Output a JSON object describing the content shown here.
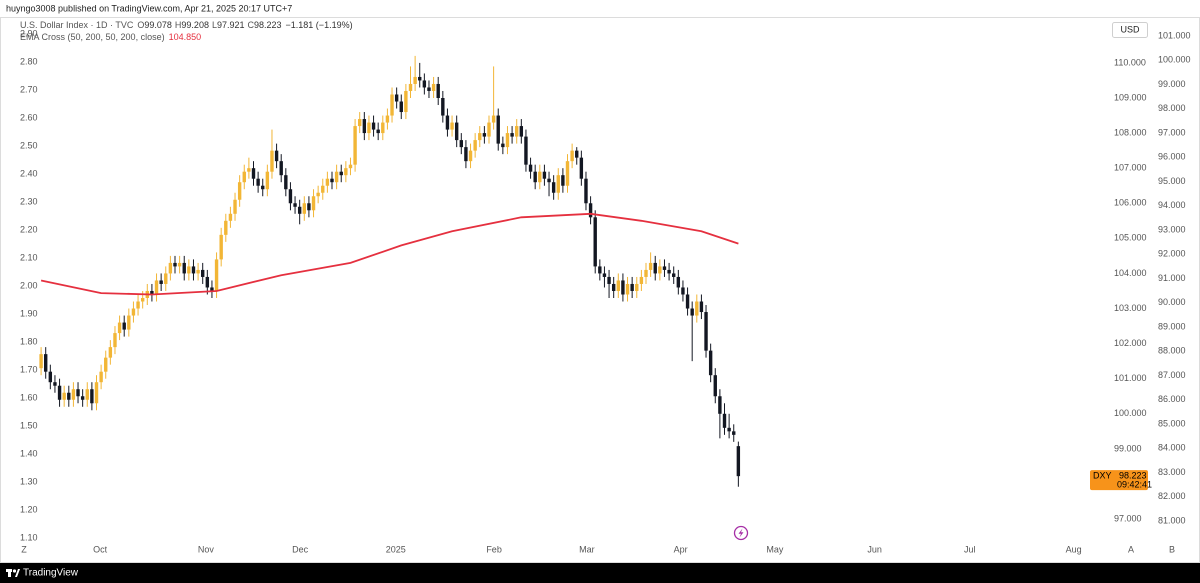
{
  "header": {
    "text": "huyngo3008 published on TradingView.com, Apr 21, 2025 20:17 UTC+7"
  },
  "chart_data": {
    "type": "candlestick",
    "title": "U.S. Dollar Index · 1D · TVC",
    "ohlc_labels": [
      "O",
      "H",
      "L",
      "C"
    ],
    "change": "−1.181 (−1.19%)",
    "currency": "USD",
    "up_color": "#f2b636",
    "down_color": "#131722",
    "open": [
      101.3,
      101.7,
      101.2,
      100.9,
      100.8,
      100.4,
      100.6,
      100.4,
      100.7,
      100.5,
      100.4,
      100.7,
      100.3,
      100.9,
      101.2,
      101.6,
      101.9,
      102.3,
      102.6,
      102.4,
      102.8,
      103.0,
      103.2,
      103.3,
      103.5,
      103.4,
      103.8,
      103.7,
      104.0,
      104.3,
      104.2,
      104.3,
      104.0,
      104.2,
      104.0,
      104.1,
      103.9,
      103.6,
      103.5,
      104.4,
      105.1,
      105.5,
      105.7,
      106.1,
      106.6,
      106.9,
      107.0,
      106.7,
      106.5,
      106.4,
      106.9,
      107.5,
      107.2,
      106.8,
      106.4,
      106.0,
      105.9,
      105.7,
      106.0,
      105.8,
      106.2,
      106.3,
      106.5,
      106.7,
      106.6,
      106.9,
      106.8,
      107.0,
      107.1,
      108.2,
      108.4,
      108.0,
      108.3,
      108.1,
      108.0,
      108.3,
      108.5,
      109.1,
      108.9,
      108.6,
      109.2,
      109.4,
      109.6,
      109.5,
      109.3,
      109.2,
      109.4,
      109.0,
      108.5,
      108.1,
      108.3,
      107.8,
      107.6,
      107.2,
      107.5,
      107.8,
      108.0,
      107.9,
      108.3,
      108.5,
      107.7,
      107.6,
      108.0,
      107.9,
      108.2,
      107.9,
      107.1,
      106.9,
      106.6,
      106.9,
      106.7,
      106.6,
      106.3,
      106.8,
      106.5,
      107.2,
      107.5,
      107.3,
      106.7,
      106.0,
      105.6,
      104.2,
      104.0,
      103.9,
      103.7,
      103.5,
      103.8,
      103.4,
      103.7,
      103.5,
      103.7,
      103.9,
      104.1,
      104.3,
      104.0,
      104.2,
      104.1,
      104.0,
      103.9,
      103.6,
      103.4,
      103.0,
      102.8,
      103.2,
      102.9,
      101.8,
      101.1,
      100.5,
      100.0,
      99.6,
      99.5,
      99.078
    ],
    "high": [
      101.9,
      101.9,
      101.4,
      101.1,
      101.0,
      100.8,
      100.8,
      100.9,
      100.9,
      100.7,
      100.9,
      100.9,
      101.1,
      101.4,
      101.8,
      102.1,
      102.5,
      102.8,
      102.8,
      103.0,
      103.2,
      103.4,
      103.5,
      103.7,
      103.7,
      104.0,
      104.0,
      104.2,
      104.5,
      104.5,
      104.5,
      104.5,
      104.4,
      104.4,
      104.3,
      104.3,
      104.1,
      103.8,
      104.6,
      105.3,
      105.7,
      105.9,
      106.3,
      106.8,
      107.1,
      107.3,
      107.2,
      106.9,
      106.7,
      107.1,
      108.1,
      107.7,
      107.4,
      107.0,
      106.6,
      106.2,
      106.1,
      106.2,
      106.2,
      106.4,
      106.5,
      106.7,
      106.9,
      106.9,
      107.1,
      107.1,
      107.2,
      107.3,
      108.4,
      108.6,
      108.6,
      108.5,
      108.5,
      108.3,
      108.5,
      108.7,
      109.3,
      109.3,
      109.1,
      109.4,
      109.9,
      110.2,
      110.0,
      109.7,
      109.5,
      109.6,
      109.6,
      109.2,
      108.7,
      108.5,
      108.5,
      108.0,
      107.8,
      107.7,
      108.0,
      108.2,
      108.2,
      108.5,
      109.9,
      108.7,
      107.9,
      108.2,
      108.2,
      108.4,
      108.4,
      108.1,
      107.3,
      107.1,
      107.1,
      107.1,
      106.9,
      106.8,
      107.0,
      107.0,
      107.4,
      107.7,
      107.6,
      107.5,
      106.9,
      106.2,
      105.8,
      104.4,
      104.2,
      104.1,
      103.9,
      104.0,
      104.0,
      103.9,
      103.9,
      103.9,
      104.1,
      104.3,
      104.6,
      104.5,
      104.4,
      104.4,
      104.3,
      104.2,
      104.1,
      103.8,
      103.6,
      103.2,
      103.4,
      103.4,
      103.1,
      102.0,
      101.3,
      100.7,
      100.3,
      100.0,
      99.7,
      99.208
    ],
    "low": [
      101.1,
      101.0,
      100.7,
      100.6,
      100.2,
      100.2,
      100.2,
      100.2,
      100.3,
      100.2,
      100.2,
      100.1,
      100.1,
      100.7,
      101.0,
      101.4,
      101.7,
      102.1,
      102.2,
      102.2,
      102.6,
      102.8,
      103.0,
      103.1,
      103.2,
      103.2,
      103.5,
      103.5,
      103.8,
      104.0,
      104.0,
      103.8,
      103.8,
      103.8,
      103.8,
      103.7,
      103.4,
      103.3,
      103.3,
      104.2,
      104.9,
      105.3,
      105.5,
      105.9,
      106.4,
      106.7,
      106.5,
      106.3,
      106.2,
      106.2,
      106.7,
      107.0,
      106.6,
      106.2,
      105.8,
      105.7,
      105.4,
      105.5,
      105.6,
      105.6,
      106.0,
      106.1,
      106.3,
      106.4,
      106.4,
      106.6,
      106.6,
      106.8,
      106.9,
      108.0,
      107.8,
      107.8,
      107.9,
      107.8,
      107.8,
      108.1,
      108.3,
      108.7,
      108.4,
      108.4,
      109.0,
      109.2,
      109.3,
      109.1,
      109.0,
      109.0,
      108.8,
      108.3,
      107.9,
      107.9,
      107.6,
      107.4,
      107.0,
      107.0,
      107.3,
      107.6,
      107.7,
      107.7,
      108.1,
      107.5,
      107.4,
      107.4,
      107.7,
      107.7,
      107.7,
      106.9,
      106.7,
      106.4,
      106.4,
      106.5,
      106.2,
      106.1,
      106.1,
      106.3,
      106.3,
      107.0,
      107.1,
      106.5,
      105.8,
      105.4,
      104.0,
      103.8,
      103.6,
      103.3,
      103.3,
      103.3,
      103.2,
      103.2,
      103.3,
      103.3,
      103.5,
      103.7,
      103.9,
      103.8,
      103.8,
      103.9,
      103.8,
      103.7,
      103.4,
      103.2,
      102.8,
      101.5,
      102.6,
      102.7,
      101.6,
      100.9,
      100.3,
      99.3,
      99.4,
      99.3,
      99.2,
      97.921
    ],
    "close": [
      101.7,
      101.2,
      100.9,
      100.8,
      100.4,
      100.6,
      100.4,
      100.7,
      100.5,
      100.4,
      100.7,
      100.3,
      100.9,
      101.2,
      101.6,
      101.9,
      102.3,
      102.6,
      102.4,
      102.8,
      103.0,
      103.2,
      103.3,
      103.5,
      103.4,
      103.8,
      103.7,
      104.0,
      104.3,
      104.2,
      104.3,
      104.0,
      104.2,
      104.0,
      104.1,
      103.9,
      103.6,
      103.5,
      104.4,
      105.1,
      105.5,
      105.7,
      106.1,
      106.6,
      106.9,
      107.0,
      106.7,
      106.5,
      106.4,
      106.9,
      107.5,
      107.2,
      106.8,
      106.4,
      106.0,
      105.9,
      105.7,
      106.0,
      105.8,
      106.2,
      106.3,
      106.5,
      106.7,
      106.6,
      106.9,
      106.8,
      107.0,
      107.1,
      108.2,
      108.4,
      108.0,
      108.3,
      108.1,
      108.0,
      108.3,
      108.5,
      109.1,
      108.9,
      108.6,
      109.2,
      109.4,
      109.6,
      109.5,
      109.3,
      109.2,
      109.4,
      109.0,
      108.5,
      108.1,
      108.3,
      107.8,
      107.6,
      107.2,
      107.5,
      107.8,
      108.0,
      107.9,
      108.3,
      108.5,
      107.7,
      107.6,
      108.0,
      107.9,
      108.2,
      107.9,
      107.1,
      106.9,
      106.6,
      106.9,
      106.7,
      106.6,
      106.3,
      106.8,
      106.5,
      107.2,
      107.5,
      107.3,
      106.7,
      106.0,
      105.6,
      104.2,
      104.0,
      103.9,
      103.7,
      103.5,
      103.8,
      103.4,
      103.7,
      103.5,
      103.7,
      103.9,
      104.1,
      104.3,
      104.0,
      104.2,
      104.1,
      104.0,
      103.9,
      103.6,
      103.4,
      103.0,
      102.8,
      103.2,
      102.9,
      101.8,
      101.1,
      100.5,
      100.0,
      99.6,
      99.5,
      99.4,
      98.223
    ],
    "ema": {
      "name": "EMA Cross (50, 200, 50, 200, close)",
      "color": "#e5303f",
      "x": [
        0,
        13,
        24,
        38,
        52,
        67,
        78,
        89,
        104,
        119,
        130,
        143,
        151
      ],
      "values": [
        103.8,
        103.44,
        103.4,
        103.5,
        103.95,
        104.3,
        104.8,
        105.2,
        105.6,
        105.7,
        105.5,
        105.2,
        104.85
      ],
      "value_labels": [
        null,
        null,
        null,
        null,
        null,
        null,
        null,
        null,
        null,
        null,
        null,
        null,
        "104.850"
      ]
    },
    "xlim": [
      -5,
      230.4
    ],
    "xticks": [
      {
        "value": 12.8,
        "label": "Oct"
      },
      {
        "value": 35.7,
        "label": "Nov"
      },
      {
        "value": 56.1,
        "label": "Dec"
      },
      {
        "value": 76.8,
        "label": "2025"
      },
      {
        "value": 98.1,
        "label": "Feb"
      },
      {
        "value": 118.2,
        "label": "Mar"
      },
      {
        "value": 138.5,
        "label": "Apr"
      },
      {
        "value": 158.9,
        "label": "May"
      },
      {
        "value": 180.5,
        "label": "Jun"
      },
      {
        "value": 201.1,
        "label": "Jul"
      },
      {
        "value": 223.6,
        "label": "Aug"
      }
    ],
    "ylim": [
      95.89,
      111.28
    ],
    "yticks": [
      {
        "value": 110,
        "label": "110.000"
      },
      {
        "value": 109,
        "label": "109.000"
      },
      {
        "value": 108,
        "label": "108.000"
      },
      {
        "value": 107,
        "label": "107.000"
      },
      {
        "value": 106,
        "label": "106.000"
      },
      {
        "value": 105,
        "label": "105.000"
      },
      {
        "value": 104,
        "label": "104.000"
      },
      {
        "value": 103,
        "label": "103.000"
      },
      {
        "value": 102,
        "label": "102.000"
      },
      {
        "value": 101,
        "label": "101.000"
      },
      {
        "value": 100,
        "label": "100.000"
      },
      {
        "value": 99,
        "label": "99.000"
      },
      {
        "value": 97,
        "label": "97.000"
      }
    ],
    "left_axis": {
      "ylim": [
        1.029,
        2.957
      ],
      "yticks": [
        {
          "value": 2.9,
          "label": "2.90"
        },
        {
          "value": 2.8,
          "label": "2.80"
        },
        {
          "value": 2.7,
          "label": "2.70"
        },
        {
          "value": 2.6,
          "label": "2.60"
        },
        {
          "value": 2.5,
          "label": "2.50"
        },
        {
          "value": 2.4,
          "label": "2.40"
        },
        {
          "value": 2.3,
          "label": "2.30"
        },
        {
          "value": 2.2,
          "label": "2.20"
        },
        {
          "value": 2.1,
          "label": "2.10"
        },
        {
          "value": 2.0,
          "label": "2.00"
        },
        {
          "value": 1.9,
          "label": "1.90"
        },
        {
          "value": 1.8,
          "label": "1.80"
        },
        {
          "value": 1.7,
          "label": "1.70"
        },
        {
          "value": 1.6,
          "label": "1.60"
        },
        {
          "value": 1.5,
          "label": "1.50"
        },
        {
          "value": 1.4,
          "label": "1.40"
        },
        {
          "value": 1.3,
          "label": "1.30"
        },
        {
          "value": 1.2,
          "label": "1.20"
        },
        {
          "value": 1.1,
          "label": "1.10"
        }
      ]
    },
    "outer_axis": {
      "ylim": [
        79.474,
        101.742
      ],
      "yticks": [
        {
          "value": 101,
          "label": "101.000"
        },
        {
          "value": 100,
          "label": "100.000"
        },
        {
          "value": 99,
          "label": "99.000"
        },
        {
          "value": 98,
          "label": "98.000"
        },
        {
          "value": 97,
          "label": "97.000"
        },
        {
          "value": 96,
          "label": "96.000"
        },
        {
          "value": 95,
          "label": "95.000"
        },
        {
          "value": 94,
          "label": "94.000"
        },
        {
          "value": 93,
          "label": "93.000"
        },
        {
          "value": 92,
          "label": "92.000"
        },
        {
          "value": 91,
          "label": "91.000"
        },
        {
          "value": 90,
          "label": "90.000"
        },
        {
          "value": 89,
          "label": "89.000"
        },
        {
          "value": 88,
          "label": "88.000"
        },
        {
          "value": 87,
          "label": "87.000"
        },
        {
          "value": 86,
          "label": "86.000"
        },
        {
          "value": 85,
          "label": "85.000"
        },
        {
          "value": 84,
          "label": "84.000"
        },
        {
          "value": 83,
          "label": "83.000"
        },
        {
          "value": 82,
          "label": "82.000"
        },
        {
          "value": 81,
          "label": "81.000"
        }
      ]
    },
    "price_label": {
      "symbol": "DXY",
      "countdown": "09:42:41",
      "color": "#f7931a"
    },
    "bottom_left_label": "Z",
    "bottom_right_labels": [
      "A",
      "B"
    ]
  },
  "footer": {
    "brand": "TradingView"
  }
}
